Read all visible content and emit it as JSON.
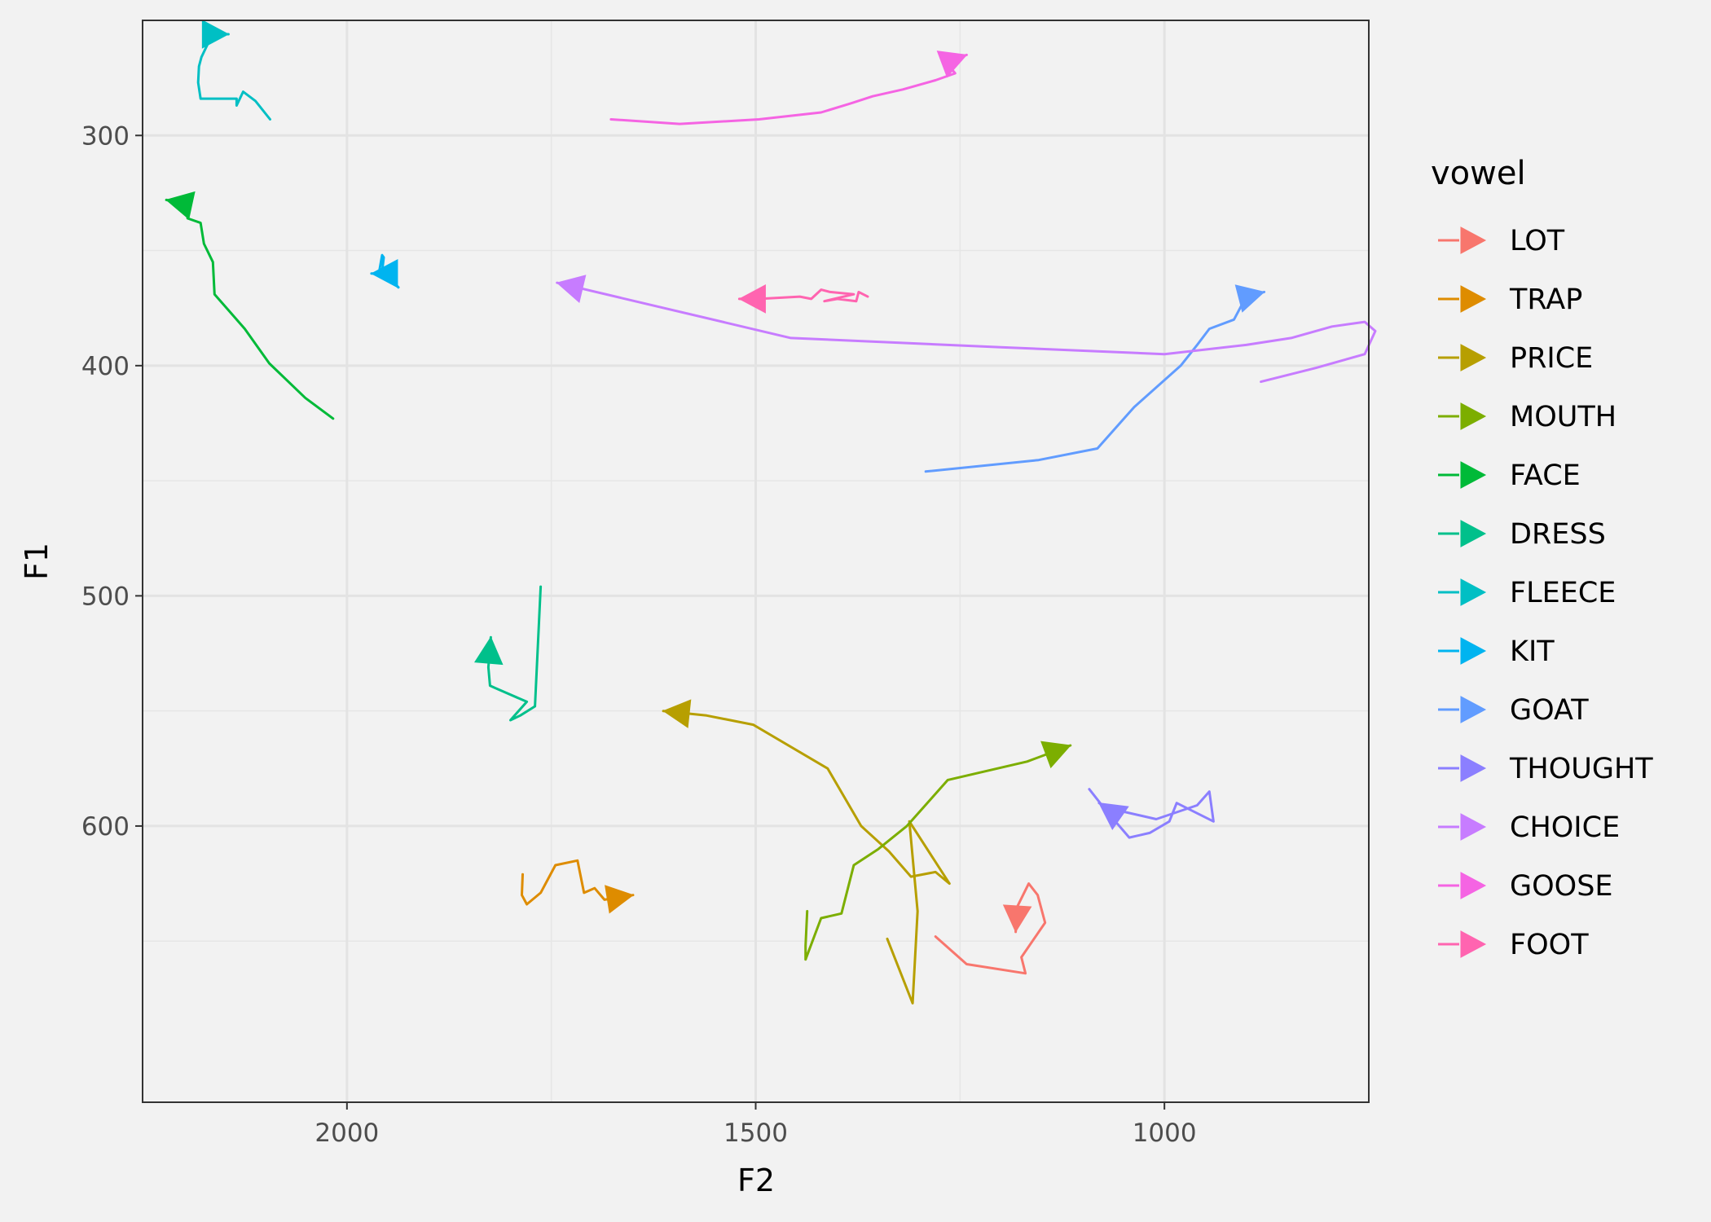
{
  "chart_data": {
    "type": "line",
    "xlabel": "F2",
    "ylabel": "F1",
    "x_reversed": true,
    "y_reversed": true,
    "xlim": [
      2250,
      750
    ],
    "ylim": [
      250,
      720
    ],
    "x_ticks": [
      2000,
      1500,
      1000
    ],
    "y_ticks": [
      300,
      400,
      500,
      600
    ],
    "grid": true,
    "legend_title": "vowel",
    "legend_position": "right",
    "series": [
      {
        "name": "LOT",
        "color": "#F8766D",
        "points": [
          [
            1280,
            648
          ],
          [
            1242,
            660
          ],
          [
            1170,
            664
          ],
          [
            1175,
            657
          ],
          [
            1146,
            642
          ],
          [
            1155,
            630
          ],
          [
            1166,
            625
          ],
          [
            1180,
            635
          ],
          [
            1182,
            646
          ]
        ]
      },
      {
        "name": "TRAP",
        "color": "#DE8C00",
        "points": [
          [
            1785,
            621
          ],
          [
            1786,
            630
          ],
          [
            1780,
            634
          ],
          [
            1763,
            629
          ],
          [
            1745,
            617
          ],
          [
            1718,
            615
          ],
          [
            1710,
            629
          ],
          [
            1697,
            627
          ],
          [
            1685,
            632
          ],
          [
            1650,
            630
          ]
        ]
      },
      {
        "name": "PRICE",
        "color": "#B79F00",
        "points": [
          [
            1339,
            649
          ],
          [
            1308,
            677
          ],
          [
            1302,
            637
          ],
          [
            1312,
            598
          ],
          [
            1263,
            625
          ],
          [
            1280,
            620
          ],
          [
            1310,
            622
          ],
          [
            1337,
            611
          ],
          [
            1371,
            600
          ],
          [
            1412,
            575
          ],
          [
            1503,
            556
          ],
          [
            1560,
            552
          ],
          [
            1613,
            550
          ]
        ]
      },
      {
        "name": "MOUTH",
        "color": "#7CAE00",
        "points": [
          [
            1437,
            637
          ],
          [
            1439,
            652
          ],
          [
            1439,
            658
          ],
          [
            1420,
            640
          ],
          [
            1395,
            638
          ],
          [
            1380,
            617
          ],
          [
            1350,
            610
          ],
          [
            1315,
            600
          ],
          [
            1265,
            580
          ],
          [
            1168,
            572
          ],
          [
            1115,
            565
          ]
        ]
      },
      {
        "name": "FACE",
        "color": "#00BA38",
        "points": [
          [
            2017,
            423
          ],
          [
            2051,
            414
          ],
          [
            2095,
            399
          ],
          [
            2125,
            384
          ],
          [
            2162,
            369
          ],
          [
            2164,
            355
          ],
          [
            2175,
            347
          ],
          [
            2179,
            338
          ],
          [
            2195,
            336
          ],
          [
            2195,
            330
          ],
          [
            2221,
            328
          ]
        ]
      },
      {
        "name": "DRESS",
        "color": "#00C08B",
        "points": [
          [
            1763,
            496
          ],
          [
            1770,
            548
          ],
          [
            1788,
            552
          ],
          [
            1800,
            554
          ],
          [
            1780,
            546
          ],
          [
            1819,
            540
          ],
          [
            1825,
            539
          ],
          [
            1827,
            531
          ],
          [
            1824,
            518
          ]
        ]
      },
      {
        "name": "FLEECE",
        "color": "#00BFC4",
        "points": [
          [
            2094,
            293
          ],
          [
            2112,
            285
          ],
          [
            2127,
            281
          ],
          [
            2135,
            287
          ],
          [
            2135,
            284
          ],
          [
            2179,
            284
          ],
          [
            2182,
            277
          ],
          [
            2181,
            270
          ],
          [
            2178,
            266
          ],
          [
            2170,
            260
          ],
          [
            2164,
            256
          ],
          [
            2145,
            256
          ]
        ]
      },
      {
        "name": "KIT",
        "color": "#00B4F0",
        "points": [
          [
            1937,
            366
          ],
          [
            1950,
            361
          ],
          [
            1957,
            359
          ],
          [
            1955,
            353
          ],
          [
            1957,
            352
          ],
          [
            1961,
            360
          ],
          [
            1970,
            360
          ]
        ]
      },
      {
        "name": "GOAT",
        "color": "#619CFF",
        "points": [
          [
            1292,
            446
          ],
          [
            1154,
            441
          ],
          [
            1082,
            436
          ],
          [
            1037,
            418
          ],
          [
            980,
            400
          ],
          [
            960,
            391
          ],
          [
            945,
            384
          ],
          [
            915,
            380
          ],
          [
            900,
            370
          ],
          [
            878,
            368
          ]
        ]
      },
      {
        "name": "THOUGHT",
        "color": "#8B7FFF",
        "points": [
          [
            1092,
            584
          ],
          [
            1072,
            593
          ],
          [
            1043,
            605
          ],
          [
            1018,
            603
          ],
          [
            994,
            598
          ],
          [
            985,
            590
          ],
          [
            940,
            598
          ],
          [
            945,
            585
          ],
          [
            960,
            591
          ],
          [
            1010,
            597
          ],
          [
            1072,
            592
          ],
          [
            1080,
            590
          ]
        ]
      },
      {
        "name": "CHOICE",
        "color": "#C77CFF",
        "points": [
          [
            882,
            407
          ],
          [
            815,
            401
          ],
          [
            755,
            395
          ],
          [
            742,
            385
          ],
          [
            755,
            381
          ],
          [
            795,
            383
          ],
          [
            845,
            388
          ],
          [
            900,
            391
          ],
          [
            1000,
            395
          ],
          [
            1200,
            392
          ],
          [
            1457,
            388
          ],
          [
            1743,
            364
          ]
        ]
      },
      {
        "name": "GOOSE",
        "color": "#F564E3",
        "points": [
          [
            1677,
            293
          ],
          [
            1593,
            295
          ],
          [
            1496,
            293
          ],
          [
            1420,
            290
          ],
          [
            1383,
            286
          ],
          [
            1357,
            283
          ],
          [
            1320,
            280
          ],
          [
            1280,
            276
          ],
          [
            1256,
            273
          ],
          [
            1263,
            270
          ],
          [
            1257,
            267
          ],
          [
            1242,
            265
          ]
        ]
      },
      {
        "name": "FOOT",
        "color": "#FF64B0",
        "points": [
          [
            1363,
            370
          ],
          [
            1374,
            368
          ],
          [
            1377,
            372
          ],
          [
            1400,
            371
          ],
          [
            1416,
            372
          ],
          [
            1380,
            369
          ],
          [
            1409,
            368
          ],
          [
            1420,
            367
          ],
          [
            1432,
            371
          ],
          [
            1446,
            370
          ],
          [
            1496,
            371
          ],
          [
            1520,
            371
          ]
        ]
      }
    ]
  }
}
